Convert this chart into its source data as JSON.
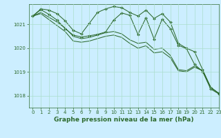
{
  "title": "Graphe pression niveau de la mer (hPa)",
  "bg_color": "#cceeff",
  "grid_color": "#aaddcc",
  "line_color": "#2d6a2d",
  "xlim": [
    -0.5,
    23
  ],
  "ylim": [
    1017.5,
    1021.85
  ],
  "yticks": [
    1018,
    1019,
    1020,
    1021
  ],
  "xticks": [
    0,
    1,
    2,
    3,
    4,
    5,
    6,
    7,
    8,
    9,
    10,
    11,
    12,
    13,
    14,
    15,
    16,
    17,
    18,
    19,
    20,
    21,
    22,
    23
  ],
  "series": [
    {
      "y": [
        1021.35,
        1021.65,
        1021.6,
        1021.45,
        1021.15,
        1020.75,
        1020.6,
        1021.05,
        1021.5,
        1021.65,
        1021.75,
        1021.7,
        1021.5,
        1021.35,
        1021.6,
        1021.25,
        1021.45,
        1021.1,
        1020.2,
        1020.0,
        1019.85,
        1019.1,
        1018.35,
        1018.1
      ],
      "marker": true
    },
    {
      "y": [
        1021.35,
        1021.5,
        1021.3,
        1021.1,
        1020.85,
        1020.5,
        1020.4,
        1020.45,
        1020.55,
        1020.65,
        1020.7,
        1020.6,
        1020.35,
        1020.2,
        1020.25,
        1019.95,
        1020.0,
        1019.7,
        1019.1,
        1019.05,
        1019.25,
        1019.05,
        1018.35,
        1018.1
      ],
      "marker": false
    },
    {
      "y": [
        1021.35,
        1021.45,
        1021.2,
        1020.95,
        1020.7,
        1020.3,
        1020.25,
        1020.3,
        1020.4,
        1020.5,
        1020.55,
        1020.45,
        1020.2,
        1020.0,
        1020.1,
        1019.8,
        1019.85,
        1019.6,
        1019.05,
        1019.0,
        1019.2,
        1019.05,
        1018.35,
        1018.1
      ],
      "marker": false
    },
    {
      "y": [
        1021.35,
        1021.62,
        1021.42,
        1021.18,
        1020.82,
        1020.55,
        1020.47,
        1020.52,
        1020.58,
        1020.68,
        1021.18,
        1021.48,
        1021.38,
        1020.58,
        1021.28,
        1020.38,
        1021.22,
        1020.82,
        1020.12,
        1019.98,
        1019.32,
        1019.02,
        1018.28,
        1018.08
      ],
      "marker": true
    }
  ],
  "marker": "D",
  "marker_size": 2.0,
  "linewidth": 0.75,
  "tick_fontsize": 5.0,
  "label_fontsize": 6.5
}
